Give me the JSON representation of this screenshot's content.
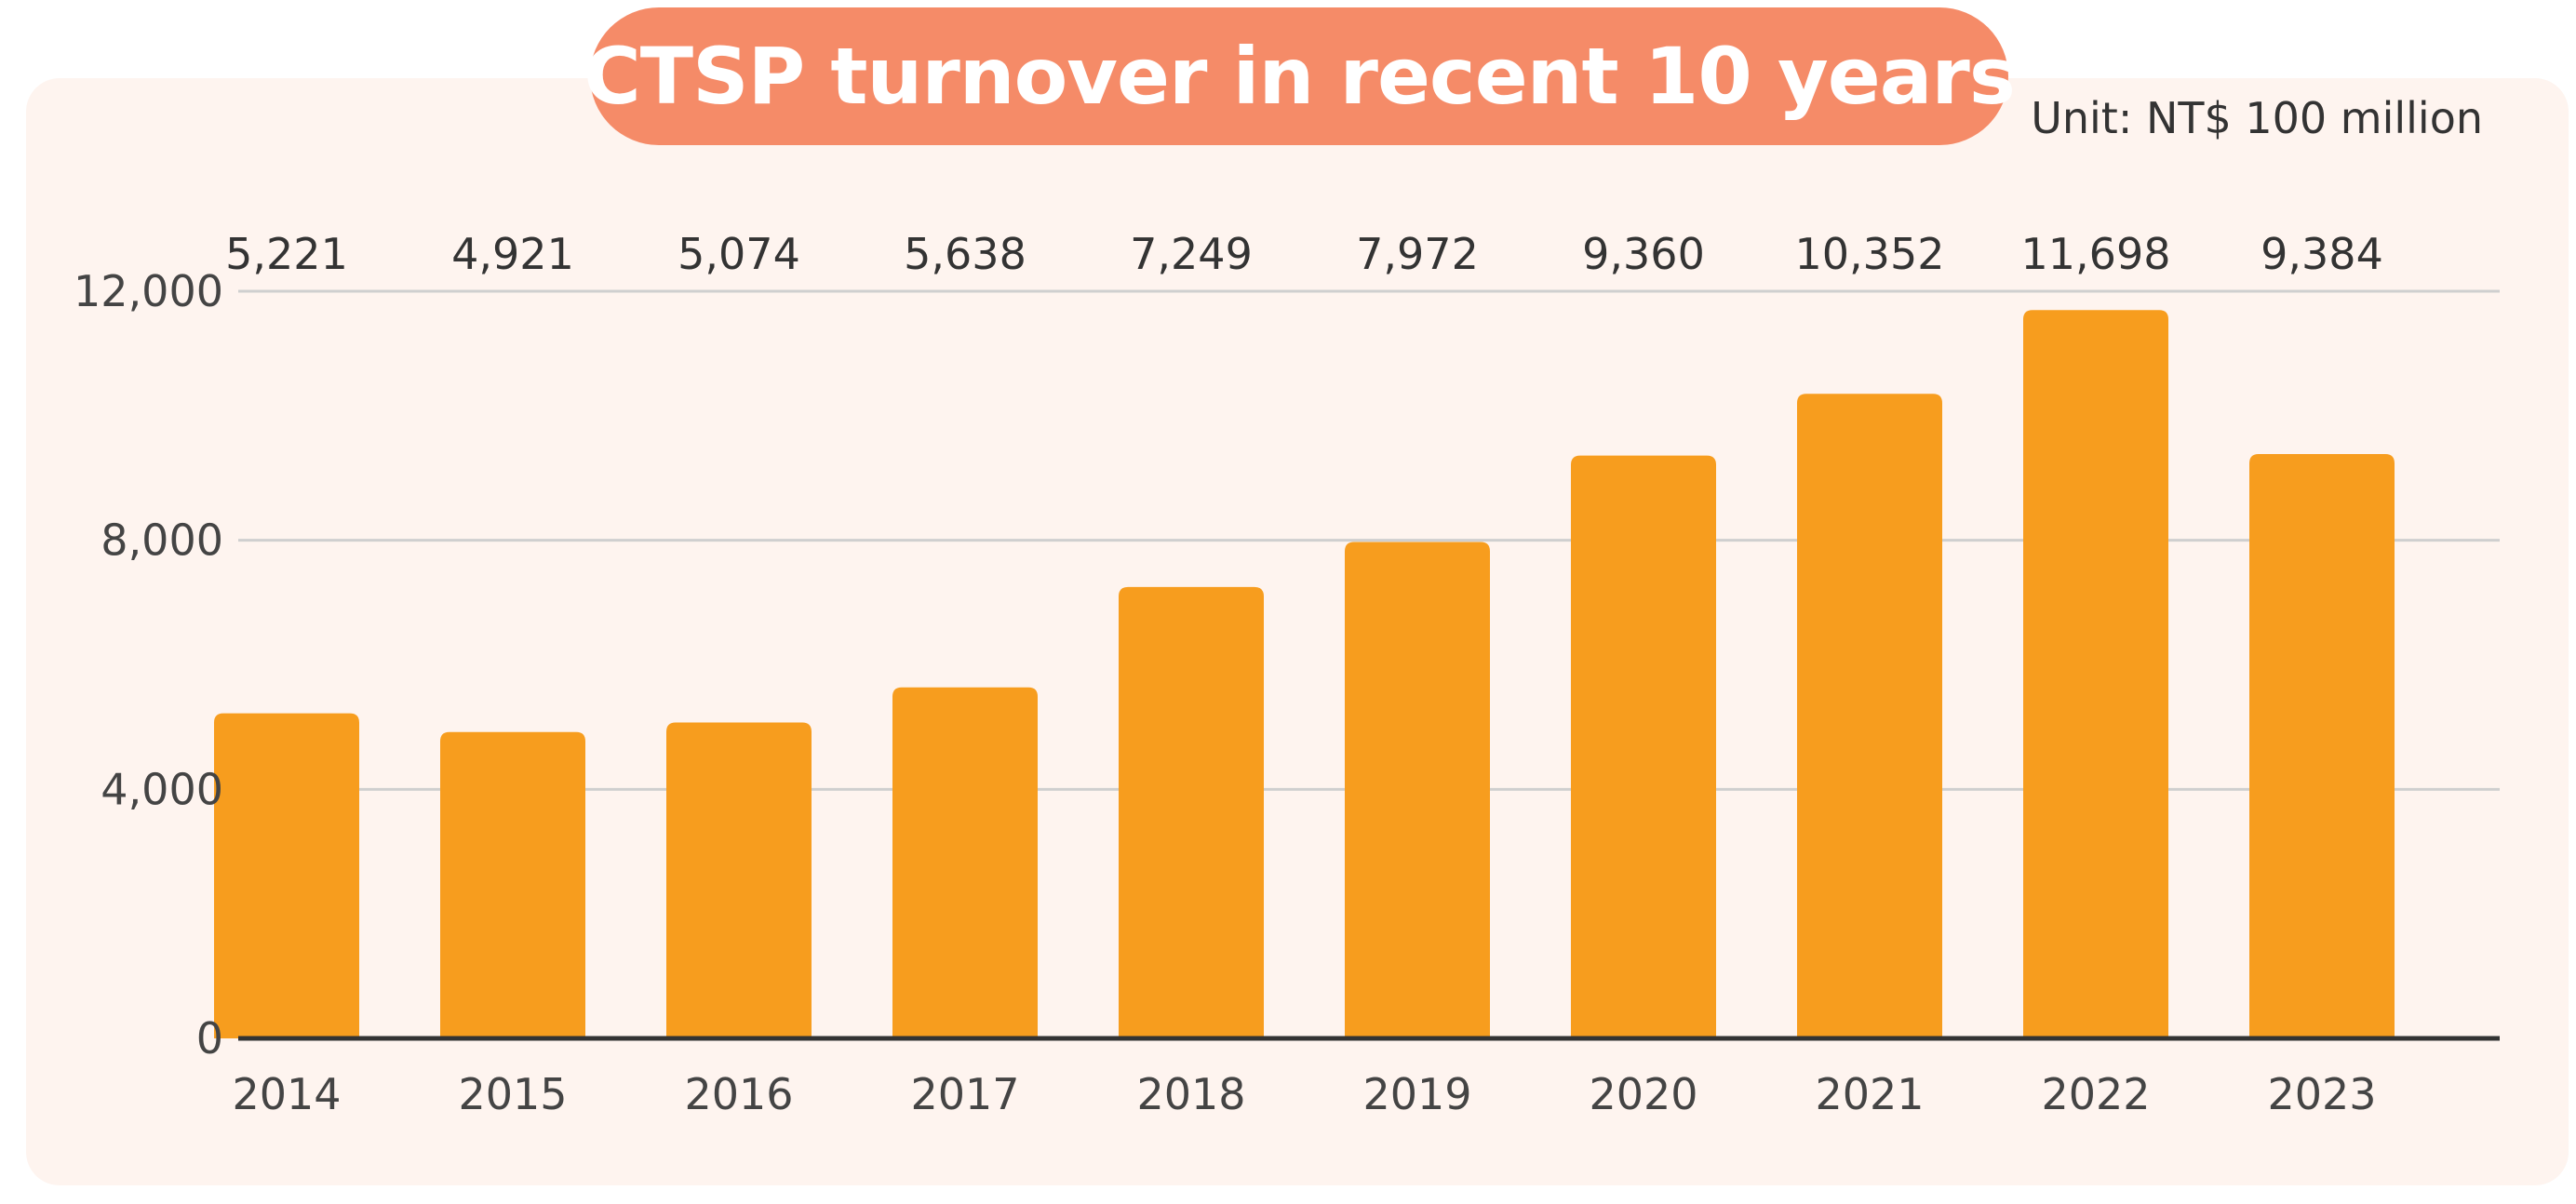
{
  "chart_data": {
    "type": "bar",
    "title": "CTSP turnover in recent 10 years",
    "unit_label": "Unit: NT$ 100 million",
    "categories": [
      "2014",
      "2015",
      "2016",
      "2017",
      "2018",
      "2019",
      "2020",
      "2021",
      "2022",
      "2023"
    ],
    "values": [
      5221,
      4921,
      5074,
      5638,
      7249,
      7972,
      9360,
      10352,
      11698,
      9384
    ],
    "value_labels": [
      "5,221",
      "4,921",
      "5,074",
      "5,638",
      "7,249",
      "7,972",
      "9,360",
      "10,352",
      "11,698",
      "9,384"
    ],
    "y_ticks": [
      0,
      4000,
      8000,
      12000
    ],
    "y_tick_labels": [
      "0",
      "4,000",
      "8,000",
      "12,000"
    ],
    "ylim": [
      0,
      12000
    ],
    "xlabel": "",
    "ylabel": "",
    "grid": true,
    "colors": {
      "bar": "#f79d1e",
      "title_bg": "#f58b68",
      "card_bg": "#fef4ef",
      "grid": "#cfcfcf",
      "axis": "#333333"
    }
  }
}
